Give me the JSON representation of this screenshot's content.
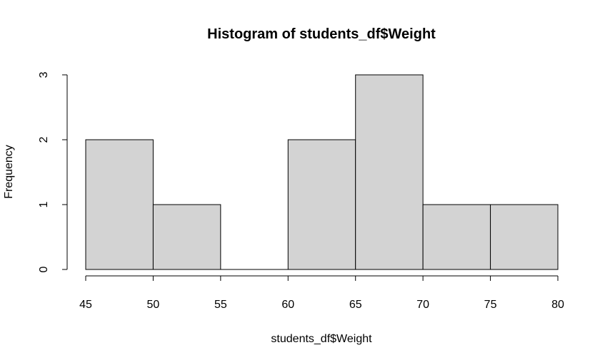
{
  "chart_data": {
    "type": "bar",
    "title": "Histogram of students_df$Weight",
    "xlabel": "students_df$Weight",
    "ylabel": "Frequency",
    "bins": [
      {
        "start": 45,
        "end": 50,
        "count": 2
      },
      {
        "start": 50,
        "end": 55,
        "count": 1
      },
      {
        "start": 55,
        "end": 60,
        "count": 0
      },
      {
        "start": 60,
        "end": 65,
        "count": 2
      },
      {
        "start": 65,
        "end": 70,
        "count": 3
      },
      {
        "start": 70,
        "end": 75,
        "count": 1
      },
      {
        "start": 75,
        "end": 80,
        "count": 1
      }
    ],
    "x_ticks": [
      45,
      50,
      55,
      60,
      65,
      70,
      75,
      80
    ],
    "y_ticks": [
      0,
      1,
      2,
      3
    ],
    "xlim": [
      45,
      80
    ],
    "ylim": [
      0,
      3
    ],
    "grid": false,
    "colors": {
      "bar_fill": "#d3d3d3",
      "bar_stroke": "#000000"
    }
  }
}
